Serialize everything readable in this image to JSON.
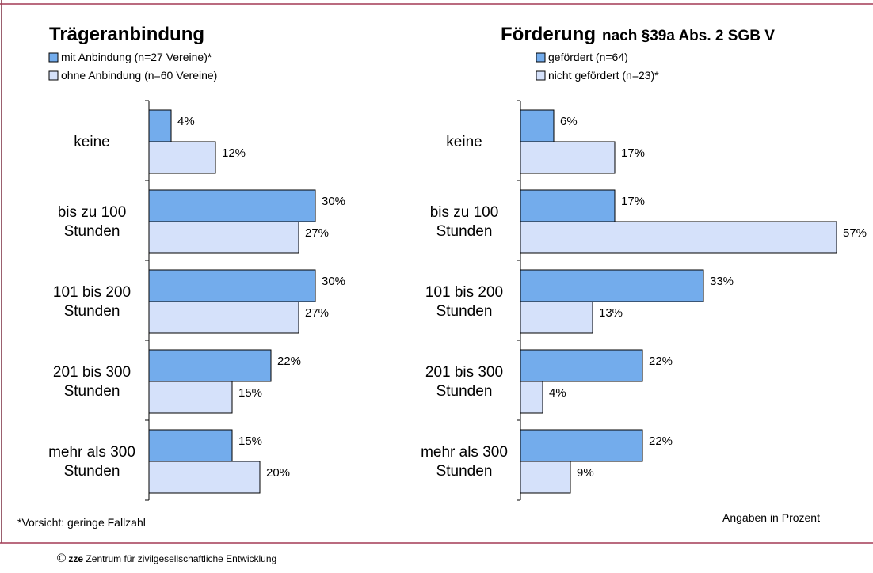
{
  "chart_data": [
    {
      "type": "bar",
      "title": "Trägeranbindung",
      "categories": [
        "keine",
        "bis zu 100 Stunden",
        "101 bis 200 Stunden",
        "201 bis 300 Stunden",
        "mehr als 300 Stunden"
      ],
      "series": [
        {
          "name": "mit Anbindung (n=27 Vereine)*",
          "color": "#73acec",
          "values": [
            4,
            30,
            30,
            22,
            15
          ],
          "value_labels": [
            "4%",
            "30%",
            "30%",
            "22%",
            "15%"
          ]
        },
        {
          "name": "ohne Anbindung (n=60 Vereine)",
          "color": "#d5e1fa",
          "values": [
            12,
            27,
            27,
            15,
            20
          ],
          "value_labels": [
            "12%",
            "27%",
            "27%",
            "15%",
            "20%"
          ]
        }
      ],
      "annotations": [
        "*Vorsicht: geringe Fallzahl"
      ]
    },
    {
      "type": "bar",
      "title": "Förderung",
      "subtitle": "nach  §39a Abs. 2 SGB V",
      "categories": [
        "keine",
        "bis zu 100 Stunden",
        "101 bis 200 Stunden",
        "201 bis 300 Stunden",
        "mehr als 300 Stunden"
      ],
      "series": [
        {
          "name": "gefördert (n=64)",
          "color": "#73acec",
          "values": [
            6,
            17,
            33,
            22,
            22
          ],
          "value_labels": [
            "6%",
            "17%",
            "33%",
            "22%",
            "22%"
          ]
        },
        {
          "name": "nicht gefördert (n=23)*",
          "color": "#d5e1fa",
          "values": [
            17,
            57,
            13,
            4,
            9
          ],
          "value_labels": [
            "17%",
            "57%",
            "13%",
            "4%",
            "9%"
          ]
        }
      ],
      "annotations": [
        "Angaben in Prozent"
      ]
    }
  ],
  "footer": {
    "symbol": "©",
    "brand": "zze",
    "text": "Zentrum für zivilgesellschaftliche Entwicklung"
  }
}
